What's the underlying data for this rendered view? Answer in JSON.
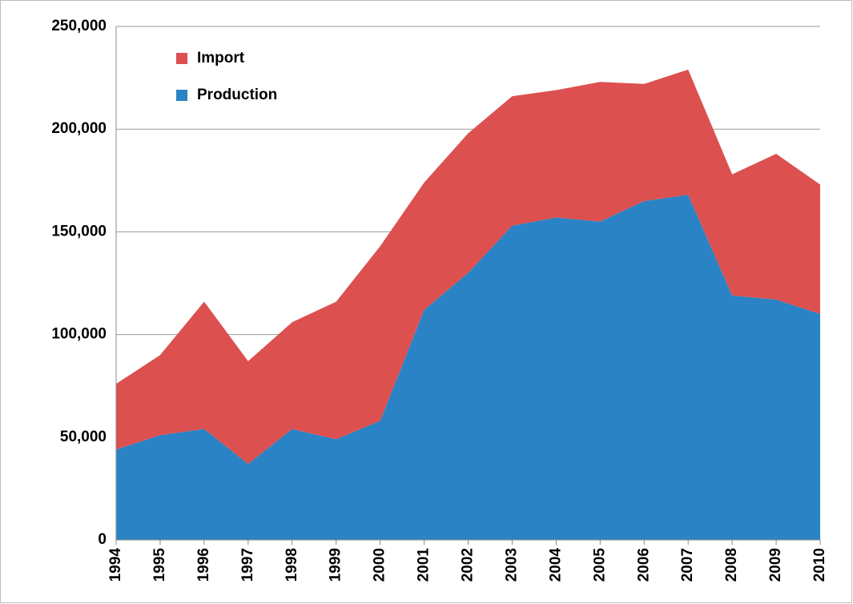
{
  "chart_data": {
    "type": "area",
    "stacked": true,
    "categories": [
      "1994",
      "1995",
      "1996",
      "1997",
      "1998",
      "1999",
      "2000",
      "2001",
      "2002",
      "2003",
      "2004",
      "2005",
      "2006",
      "2007",
      "2008",
      "2009",
      "2010"
    ],
    "series": [
      {
        "name": "Production",
        "color": "#2a83c4",
        "values": [
          44000,
          51000,
          54000,
          37000,
          54000,
          49000,
          58000,
          112000,
          130000,
          153000,
          157000,
          155000,
          165000,
          168000,
          119000,
          117000,
          110000
        ]
      },
      {
        "name": "Import",
        "color": "#dc5050",
        "values": [
          32000,
          39000,
          62000,
          50000,
          52000,
          67000,
          85000,
          62000,
          68000,
          63000,
          62000,
          68000,
          57000,
          61000,
          59000,
          71000,
          63000
        ]
      }
    ],
    "ylim": [
      0,
      250000
    ],
    "yticks": [
      0,
      {
        "value": 50000,
        "label": "50,000"
      },
      {
        "value": 100000,
        "label": "100,000"
      },
      {
        "value": 150000,
        "label": "150,000"
      },
      {
        "value": 200000,
        "label": "200,000"
      },
      {
        "value": 250000,
        "label": "250,000"
      }
    ],
    "grid": true,
    "legend": "upper left"
  }
}
